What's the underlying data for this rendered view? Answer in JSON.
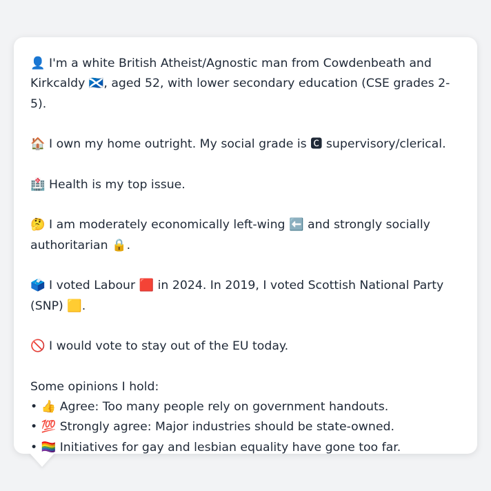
{
  "profile": {
    "identity": "👤 I'm a white British Atheist/Agnostic man from Cowdenbeath and Kirkcaldy 🏴󠁧󠁢󠁳󠁣󠁴󠁿, aged 52, with lower secondary education (CSE grades 2-5).",
    "home": "🏠 I own my home outright. My social grade is 🅲 supervisory/clerical.",
    "issue": "🏥 Health is my top issue.",
    "ideology": "🤔 I am moderately economically left-wing ⬅️ and strongly socially authoritarian 🔒.",
    "votes": "🗳️ I voted Labour 🟥 in 2024. In 2019, I voted Scottish National Party (SNP) 🟨.",
    "eu": "🚫 I would vote to stay out of the EU today.",
    "opinions_heading": "Some opinions I hold:",
    "opinions": [
      "• 👍 Agree: Too many people rely on government handouts.",
      "• 💯 Strongly agree: Major industries should be state-owned.",
      "• 🏳️‍🌈 Initiatives for gay and lesbian equality have gone too far."
    ]
  }
}
